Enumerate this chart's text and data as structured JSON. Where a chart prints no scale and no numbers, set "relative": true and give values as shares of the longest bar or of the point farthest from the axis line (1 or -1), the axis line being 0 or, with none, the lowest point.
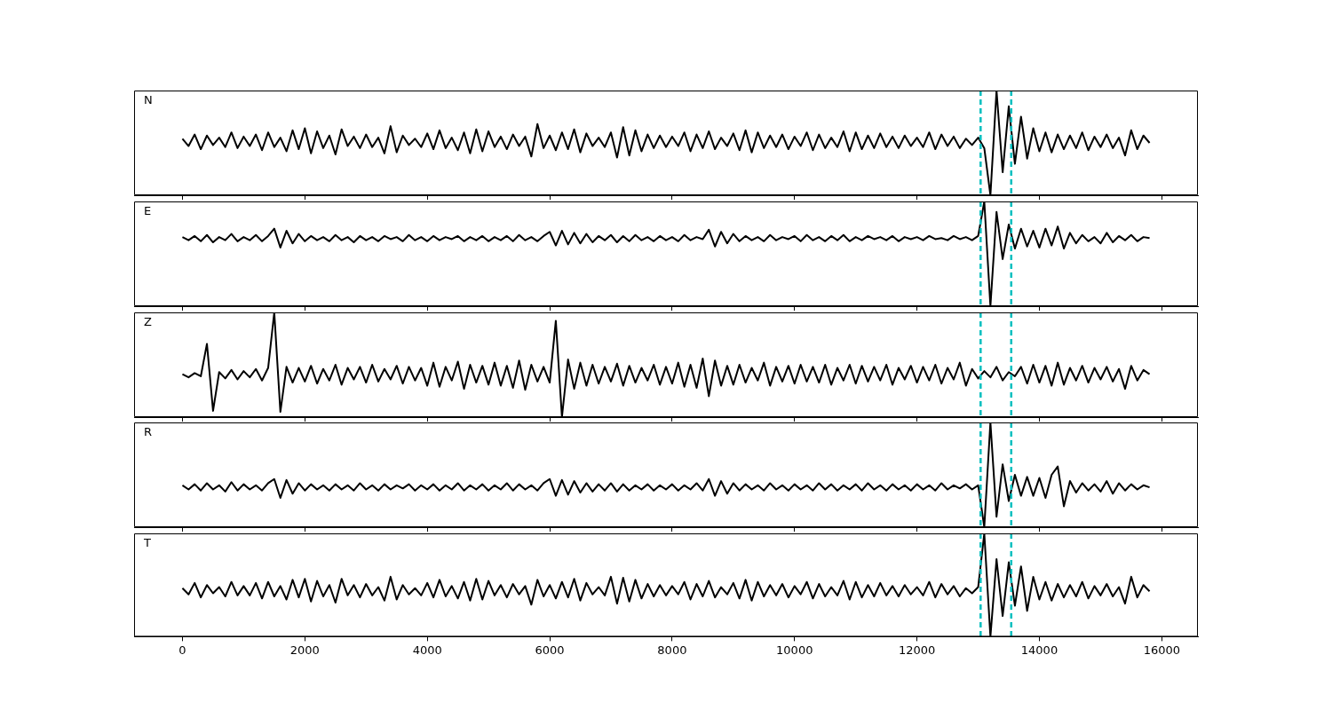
{
  "chart_data": [
    {
      "type": "line",
      "relative": true,
      "annotations": [
        "N"
      ],
      "xlim": [
        -790,
        16590
      ],
      "xticks": [
        0,
        2000,
        4000,
        6000,
        8000,
        10000,
        12000,
        14000,
        16000
      ],
      "tick_labels": false,
      "ref_lines": [
        {
          "axis": "x",
          "value": 13040,
          "color": "#00bfbf",
          "line_style": "dashed"
        },
        {
          "axis": "x",
          "value": 13540,
          "color": "#00bfbf",
          "line_style": "dashed"
        }
      ],
      "x": [
        0,
        100,
        200,
        300,
        400,
        500,
        600,
        700,
        800,
        900,
        1000,
        1100,
        1200,
        1300,
        1400,
        1500,
        1600,
        1700,
        1800,
        1900,
        2000,
        2100,
        2200,
        2300,
        2400,
        2500,
        2600,
        2700,
        2800,
        2900,
        3000,
        3100,
        3200,
        3300,
        3400,
        3500,
        3600,
        3700,
        3800,
        3900,
        4000,
        4100,
        4200,
        4300,
        4400,
        4500,
        4600,
        4700,
        4800,
        4900,
        5000,
        5100,
        5200,
        5300,
        5400,
        5500,
        5600,
        5700,
        5800,
        5900,
        6000,
        6100,
        6200,
        6300,
        6400,
        6500,
        6600,
        6700,
        6800,
        6900,
        7000,
        7100,
        7200,
        7300,
        7400,
        7500,
        7600,
        7700,
        7800,
        7900,
        8000,
        8100,
        8200,
        8300,
        8400,
        8500,
        8600,
        8700,
        8800,
        8900,
        9000,
        9100,
        9200,
        9300,
        9400,
        9500,
        9600,
        9700,
        9800,
        9900,
        10000,
        10100,
        10200,
        10300,
        10400,
        10500,
        10600,
        10700,
        10800,
        10900,
        11000,
        11100,
        11200,
        11300,
        11400,
        11500,
        11600,
        11700,
        11800,
        11900,
        12000,
        12100,
        12200,
        12300,
        12400,
        12500,
        12600,
        12700,
        12800,
        12900,
        13000,
        13100,
        13200,
        13300,
        13400,
        13500,
        13600,
        13700,
        13800,
        13900,
        14000,
        14100,
        14200,
        14300,
        14400,
        14500,
        14600,
        14700,
        14800,
        14900,
        15000,
        15100,
        15200,
        15300,
        15400,
        15500,
        15600,
        15700,
        15800
      ],
      "series": [
        {
          "color": "#000000",
          "line_style": "solid",
          "marker": "none",
          "values": [
            0.54,
            0.47,
            0.58,
            0.44,
            0.57,
            0.48,
            0.55,
            0.46,
            0.6,
            0.45,
            0.56,
            0.47,
            0.58,
            0.43,
            0.6,
            0.46,
            0.55,
            0.42,
            0.62,
            0.44,
            0.64,
            0.4,
            0.61,
            0.45,
            0.57,
            0.39,
            0.63,
            0.47,
            0.56,
            0.45,
            0.58,
            0.46,
            0.55,
            0.4,
            0.66,
            0.41,
            0.57,
            0.48,
            0.54,
            0.46,
            0.59,
            0.44,
            0.62,
            0.45,
            0.55,
            0.43,
            0.6,
            0.4,
            0.63,
            0.42,
            0.61,
            0.46,
            0.56,
            0.44,
            0.58,
            0.47,
            0.56,
            0.37,
            0.68,
            0.45,
            0.57,
            0.43,
            0.6,
            0.44,
            0.63,
            0.41,
            0.59,
            0.47,
            0.55,
            0.46,
            0.6,
            0.36,
            0.65,
            0.38,
            0.62,
            0.42,
            0.58,
            0.45,
            0.57,
            0.46,
            0.56,
            0.47,
            0.6,
            0.42,
            0.58,
            0.45,
            0.61,
            0.44,
            0.55,
            0.47,
            0.59,
            0.43,
            0.62,
            0.41,
            0.6,
            0.45,
            0.57,
            0.46,
            0.58,
            0.44,
            0.56,
            0.47,
            0.6,
            0.43,
            0.58,
            0.45,
            0.55,
            0.46,
            0.61,
            0.42,
            0.6,
            0.44,
            0.57,
            0.45,
            0.59,
            0.46,
            0.56,
            0.45,
            0.57,
            0.47,
            0.55,
            0.46,
            0.6,
            0.44,
            0.58,
            0.47,
            0.56,
            0.45,
            0.54,
            0.48,
            0.55,
            0.45,
            0.0,
            1.0,
            0.22,
            0.85,
            0.3,
            0.75,
            0.35,
            0.64,
            0.42,
            0.6,
            0.41,
            0.58,
            0.44,
            0.57,
            0.45,
            0.6,
            0.43,
            0.56,
            0.46,
            0.58,
            0.45,
            0.55,
            0.38,
            0.62,
            0.44,
            0.57,
            0.5
          ]
        }
      ]
    },
    {
      "type": "line",
      "relative": true,
      "annotations": [
        "E"
      ],
      "xlim": [
        -790,
        16590
      ],
      "xticks": [
        0,
        2000,
        4000,
        6000,
        8000,
        10000,
        12000,
        14000,
        16000
      ],
      "tick_labels": false,
      "ref_lines": [
        {
          "axis": "x",
          "value": 13040,
          "color": "#00bfbf",
          "line_style": "dashed"
        },
        {
          "axis": "x",
          "value": 13540,
          "color": "#00bfbf",
          "line_style": "dashed"
        }
      ],
      "x": [
        0,
        100,
        200,
        300,
        400,
        500,
        600,
        700,
        800,
        900,
        1000,
        1100,
        1200,
        1300,
        1400,
        1500,
        1600,
        1700,
        1800,
        1900,
        2000,
        2100,
        2200,
        2300,
        2400,
        2500,
        2600,
        2700,
        2800,
        2900,
        3000,
        3100,
        3200,
        3300,
        3400,
        3500,
        3600,
        3700,
        3800,
        3900,
        4000,
        4100,
        4200,
        4300,
        4400,
        4500,
        4600,
        4700,
        4800,
        4900,
        5000,
        5100,
        5200,
        5300,
        5400,
        5500,
        5600,
        5700,
        5800,
        5900,
        6000,
        6100,
        6200,
        6300,
        6400,
        6500,
        6600,
        6700,
        6800,
        6900,
        7000,
        7100,
        7200,
        7300,
        7400,
        7500,
        7600,
        7700,
        7800,
        7900,
        8000,
        8100,
        8200,
        8300,
        8400,
        8500,
        8600,
        8700,
        8800,
        8900,
        9000,
        9100,
        9200,
        9300,
        9400,
        9500,
        9600,
        9700,
        9800,
        9900,
        10000,
        10100,
        10200,
        10300,
        10400,
        10500,
        10600,
        10700,
        10800,
        10900,
        11000,
        11100,
        11200,
        11300,
        11400,
        11500,
        11600,
        11700,
        11800,
        11900,
        12000,
        12100,
        12200,
        12300,
        12400,
        12500,
        12600,
        12700,
        12800,
        12900,
        13000,
        13100,
        13200,
        13300,
        13400,
        13500,
        13600,
        13700,
        13800,
        13900,
        14000,
        14100,
        14200,
        14300,
        14400,
        14500,
        14600,
        14700,
        14800,
        14900,
        15000,
        15100,
        15200,
        15300,
        15400,
        15500,
        15600,
        15700,
        15800
      ],
      "series": [
        {
          "color": "#000000",
          "line_style": "solid",
          "marker": "none",
          "values": [
            0.66,
            0.63,
            0.67,
            0.62,
            0.68,
            0.61,
            0.66,
            0.63,
            0.69,
            0.62,
            0.66,
            0.63,
            0.68,
            0.62,
            0.67,
            0.74,
            0.56,
            0.72,
            0.6,
            0.69,
            0.62,
            0.67,
            0.63,
            0.66,
            0.62,
            0.68,
            0.63,
            0.66,
            0.61,
            0.67,
            0.63,
            0.66,
            0.62,
            0.67,
            0.64,
            0.66,
            0.62,
            0.68,
            0.63,
            0.66,
            0.62,
            0.67,
            0.63,
            0.66,
            0.64,
            0.67,
            0.62,
            0.66,
            0.63,
            0.67,
            0.62,
            0.66,
            0.63,
            0.67,
            0.62,
            0.68,
            0.63,
            0.66,
            0.62,
            0.67,
            0.71,
            0.58,
            0.72,
            0.59,
            0.7,
            0.6,
            0.69,
            0.61,
            0.67,
            0.63,
            0.68,
            0.61,
            0.67,
            0.62,
            0.68,
            0.63,
            0.66,
            0.62,
            0.67,
            0.63,
            0.66,
            0.62,
            0.68,
            0.63,
            0.66,
            0.64,
            0.73,
            0.57,
            0.71,
            0.6,
            0.69,
            0.62,
            0.67,
            0.63,
            0.66,
            0.62,
            0.68,
            0.63,
            0.66,
            0.64,
            0.67,
            0.62,
            0.68,
            0.63,
            0.66,
            0.62,
            0.67,
            0.63,
            0.68,
            0.62,
            0.66,
            0.63,
            0.67,
            0.64,
            0.66,
            0.63,
            0.67,
            0.62,
            0.66,
            0.64,
            0.66,
            0.63,
            0.67,
            0.64,
            0.65,
            0.63,
            0.67,
            0.64,
            0.66,
            0.63,
            0.67,
            1.0,
            0.0,
            0.9,
            0.45,
            0.78,
            0.55,
            0.74,
            0.57,
            0.72,
            0.56,
            0.74,
            0.58,
            0.76,
            0.55,
            0.7,
            0.6,
            0.68,
            0.62,
            0.66,
            0.6,
            0.7,
            0.61,
            0.67,
            0.63,
            0.68,
            0.62,
            0.66,
            0.65
          ]
        }
      ]
    },
    {
      "type": "line",
      "relative": true,
      "annotations": [
        "Z"
      ],
      "xlim": [
        -790,
        16590
      ],
      "xticks": [
        0,
        2000,
        4000,
        6000,
        8000,
        10000,
        12000,
        14000,
        16000
      ],
      "tick_labels": false,
      "ref_lines": [
        {
          "axis": "x",
          "value": 13040,
          "color": "#00bfbf",
          "line_style": "dashed"
        },
        {
          "axis": "x",
          "value": 13540,
          "color": "#00bfbf",
          "line_style": "dashed"
        }
      ],
      "x": [
        0,
        100,
        200,
        300,
        400,
        500,
        600,
        700,
        800,
        900,
        1000,
        1100,
        1200,
        1300,
        1400,
        1500,
        1600,
        1700,
        1800,
        1900,
        2000,
        2100,
        2200,
        2300,
        2400,
        2500,
        2600,
        2700,
        2800,
        2900,
        3000,
        3100,
        3200,
        3300,
        3400,
        3500,
        3600,
        3700,
        3800,
        3900,
        4000,
        4100,
        4200,
        4300,
        4400,
        4500,
        4600,
        4700,
        4800,
        4900,
        5000,
        5100,
        5200,
        5300,
        5400,
        5500,
        5600,
        5700,
        5800,
        5900,
        6000,
        6100,
        6200,
        6300,
        6400,
        6500,
        6600,
        6700,
        6800,
        6900,
        7000,
        7100,
        7200,
        7300,
        7400,
        7500,
        7600,
        7700,
        7800,
        7900,
        8000,
        8100,
        8200,
        8300,
        8400,
        8500,
        8600,
        8700,
        8800,
        8900,
        9000,
        9100,
        9200,
        9300,
        9400,
        9500,
        9600,
        9700,
        9800,
        9900,
        10000,
        10100,
        10200,
        10300,
        10400,
        10500,
        10600,
        10700,
        10800,
        10900,
        11000,
        11100,
        11200,
        11300,
        11400,
        11500,
        11600,
        11700,
        11800,
        11900,
        12000,
        12100,
        12200,
        12300,
        12400,
        12500,
        12600,
        12700,
        12800,
        12900,
        13000,
        13100,
        13200,
        13300,
        13400,
        13500,
        13600,
        13700,
        13800,
        13900,
        14000,
        14100,
        14200,
        14300,
        14400,
        14500,
        14600,
        14700,
        14800,
        14900,
        15000,
        15100,
        15200,
        15300,
        15400,
        15500,
        15600,
        15700,
        15800
      ],
      "series": [
        {
          "color": "#000000",
          "line_style": "solid",
          "marker": "none",
          "values": [
            0.41,
            0.38,
            0.42,
            0.39,
            0.7,
            0.06,
            0.43,
            0.37,
            0.45,
            0.36,
            0.44,
            0.38,
            0.46,
            0.35,
            0.47,
            1.0,
            0.05,
            0.48,
            0.33,
            0.47,
            0.34,
            0.49,
            0.32,
            0.46,
            0.35,
            0.5,
            0.31,
            0.47,
            0.36,
            0.48,
            0.33,
            0.5,
            0.34,
            0.46,
            0.36,
            0.49,
            0.32,
            0.48,
            0.35,
            0.47,
            0.3,
            0.52,
            0.29,
            0.48,
            0.35,
            0.53,
            0.27,
            0.5,
            0.33,
            0.49,
            0.31,
            0.52,
            0.3,
            0.49,
            0.28,
            0.54,
            0.26,
            0.5,
            0.34,
            0.48,
            0.33,
            0.92,
            0.0,
            0.55,
            0.27,
            0.52,
            0.3,
            0.5,
            0.32,
            0.48,
            0.34,
            0.51,
            0.3,
            0.49,
            0.33,
            0.47,
            0.35,
            0.5,
            0.31,
            0.48,
            0.32,
            0.52,
            0.29,
            0.5,
            0.28,
            0.56,
            0.2,
            0.54,
            0.3,
            0.49,
            0.31,
            0.5,
            0.33,
            0.47,
            0.35,
            0.52,
            0.3,
            0.48,
            0.34,
            0.49,
            0.32,
            0.5,
            0.34,
            0.48,
            0.33,
            0.5,
            0.31,
            0.47,
            0.35,
            0.5,
            0.32,
            0.49,
            0.34,
            0.48,
            0.35,
            0.5,
            0.31,
            0.47,
            0.36,
            0.49,
            0.33,
            0.48,
            0.35,
            0.5,
            0.32,
            0.47,
            0.36,
            0.52,
            0.3,
            0.46,
            0.37,
            0.44,
            0.38,
            0.48,
            0.35,
            0.43,
            0.39,
            0.48,
            0.32,
            0.5,
            0.33,
            0.49,
            0.3,
            0.52,
            0.31,
            0.47,
            0.35,
            0.49,
            0.33,
            0.47,
            0.36,
            0.48,
            0.34,
            0.46,
            0.27,
            0.49,
            0.35,
            0.45,
            0.41
          ]
        }
      ]
    },
    {
      "type": "line",
      "relative": true,
      "annotations": [
        "R"
      ],
      "xlim": [
        -790,
        16590
      ],
      "xticks": [
        0,
        2000,
        4000,
        6000,
        8000,
        10000,
        12000,
        14000,
        16000
      ],
      "tick_labels": false,
      "ref_lines": [
        {
          "axis": "x",
          "value": 13040,
          "color": "#00bfbf",
          "line_style": "dashed"
        },
        {
          "axis": "x",
          "value": 13540,
          "color": "#00bfbf",
          "line_style": "dashed"
        }
      ],
      "x": [
        0,
        100,
        200,
        300,
        400,
        500,
        600,
        700,
        800,
        900,
        1000,
        1100,
        1200,
        1300,
        1400,
        1500,
        1600,
        1700,
        1800,
        1900,
        2000,
        2100,
        2200,
        2300,
        2400,
        2500,
        2600,
        2700,
        2800,
        2900,
        3000,
        3100,
        3200,
        3300,
        3400,
        3500,
        3600,
        3700,
        3800,
        3900,
        4000,
        4100,
        4200,
        4300,
        4400,
        4500,
        4600,
        4700,
        4800,
        4900,
        5000,
        5100,
        5200,
        5300,
        5400,
        5500,
        5600,
        5700,
        5800,
        5900,
        6000,
        6100,
        6200,
        6300,
        6400,
        6500,
        6600,
        6700,
        6800,
        6900,
        7000,
        7100,
        7200,
        7300,
        7400,
        7500,
        7600,
        7700,
        7800,
        7900,
        8000,
        8100,
        8200,
        8300,
        8400,
        8500,
        8600,
        8700,
        8800,
        8900,
        9000,
        9100,
        9200,
        9300,
        9400,
        9500,
        9600,
        9700,
        9800,
        9900,
        10000,
        10100,
        10200,
        10300,
        10400,
        10500,
        10600,
        10700,
        10800,
        10900,
        11000,
        11100,
        11200,
        11300,
        11400,
        11500,
        11600,
        11700,
        11800,
        11900,
        12000,
        12100,
        12200,
        12300,
        12400,
        12500,
        12600,
        12700,
        12800,
        12900,
        13000,
        13100,
        13200,
        13300,
        13400,
        13500,
        13600,
        13700,
        13800,
        13900,
        14000,
        14100,
        14200,
        14300,
        14400,
        14500,
        14600,
        14700,
        14800,
        14900,
        15000,
        15100,
        15200,
        15300,
        15400,
        15500,
        15600,
        15700,
        15800
      ],
      "series": [
        {
          "color": "#000000",
          "line_style": "solid",
          "marker": "none",
          "values": [
            0.4,
            0.36,
            0.41,
            0.35,
            0.42,
            0.36,
            0.4,
            0.34,
            0.43,
            0.35,
            0.41,
            0.36,
            0.4,
            0.35,
            0.42,
            0.46,
            0.28,
            0.45,
            0.32,
            0.42,
            0.35,
            0.41,
            0.36,
            0.4,
            0.35,
            0.41,
            0.36,
            0.4,
            0.35,
            0.42,
            0.36,
            0.4,
            0.35,
            0.41,
            0.36,
            0.4,
            0.37,
            0.41,
            0.35,
            0.4,
            0.36,
            0.41,
            0.35,
            0.4,
            0.36,
            0.42,
            0.35,
            0.4,
            0.36,
            0.41,
            0.35,
            0.4,
            0.36,
            0.42,
            0.35,
            0.41,
            0.36,
            0.4,
            0.35,
            0.42,
            0.46,
            0.3,
            0.45,
            0.31,
            0.44,
            0.33,
            0.42,
            0.34,
            0.41,
            0.35,
            0.42,
            0.34,
            0.41,
            0.35,
            0.4,
            0.36,
            0.41,
            0.35,
            0.4,
            0.36,
            0.41,
            0.35,
            0.4,
            0.36,
            0.42,
            0.35,
            0.46,
            0.3,
            0.44,
            0.32,
            0.42,
            0.35,
            0.41,
            0.36,
            0.4,
            0.35,
            0.42,
            0.36,
            0.4,
            0.35,
            0.41,
            0.36,
            0.4,
            0.35,
            0.42,
            0.36,
            0.41,
            0.35,
            0.4,
            0.36,
            0.41,
            0.35,
            0.42,
            0.36,
            0.4,
            0.35,
            0.41,
            0.36,
            0.4,
            0.35,
            0.41,
            0.36,
            0.4,
            0.35,
            0.42,
            0.36,
            0.4,
            0.37,
            0.41,
            0.36,
            0.4,
            0.0,
            1.0,
            0.1,
            0.6,
            0.25,
            0.5,
            0.3,
            0.48,
            0.3,
            0.47,
            0.28,
            0.5,
            0.58,
            0.2,
            0.44,
            0.33,
            0.42,
            0.35,
            0.41,
            0.34,
            0.44,
            0.32,
            0.42,
            0.35,
            0.41,
            0.36,
            0.4,
            0.38
          ]
        }
      ]
    },
    {
      "type": "line",
      "relative": true,
      "annotations": [
        "T"
      ],
      "xlim": [
        -790,
        16590
      ],
      "xticks": [
        0,
        2000,
        4000,
        6000,
        8000,
        10000,
        12000,
        14000,
        16000
      ],
      "tick_labels": "x",
      "ref_lines": [
        {
          "axis": "x",
          "value": 13040,
          "color": "#00bfbf",
          "line_style": "dashed"
        },
        {
          "axis": "x",
          "value": 13540,
          "color": "#00bfbf",
          "line_style": "dashed"
        }
      ],
      "x": [
        0,
        100,
        200,
        300,
        400,
        500,
        600,
        700,
        800,
        900,
        1000,
        1100,
        1200,
        1300,
        1400,
        1500,
        1600,
        1700,
        1800,
        1900,
        2000,
        2100,
        2200,
        2300,
        2400,
        2500,
        2600,
        2700,
        2800,
        2900,
        3000,
        3100,
        3200,
        3300,
        3400,
        3500,
        3600,
        3700,
        3800,
        3900,
        4000,
        4100,
        4200,
        4300,
        4400,
        4500,
        4600,
        4700,
        4800,
        4900,
        5000,
        5100,
        5200,
        5300,
        5400,
        5500,
        5600,
        5700,
        5800,
        5900,
        6000,
        6100,
        6200,
        6300,
        6400,
        6500,
        6600,
        6700,
        6800,
        6900,
        7000,
        7100,
        7200,
        7300,
        7400,
        7500,
        7600,
        7700,
        7800,
        7900,
        8000,
        8100,
        8200,
        8300,
        8400,
        8500,
        8600,
        8700,
        8800,
        8900,
        9000,
        9100,
        9200,
        9300,
        9400,
        9500,
        9600,
        9700,
        9800,
        9900,
        10000,
        10100,
        10200,
        10300,
        10400,
        10500,
        10600,
        10700,
        10800,
        10900,
        11000,
        11100,
        11200,
        11300,
        11400,
        11500,
        11600,
        11700,
        11800,
        11900,
        12000,
        12100,
        12200,
        12300,
        12400,
        12500,
        12600,
        12700,
        12800,
        12900,
        13000,
        13100,
        13200,
        13300,
        13400,
        13500,
        13600,
        13700,
        13800,
        13900,
        14000,
        14100,
        14200,
        14300,
        14400,
        14500,
        14600,
        14700,
        14800,
        14900,
        15000,
        15100,
        15200,
        15300,
        15400,
        15500,
        15600,
        15700,
        15800
      ],
      "series": [
        {
          "color": "#000000",
          "line_style": "solid",
          "marker": "none",
          "values": [
            0.47,
            0.41,
            0.52,
            0.38,
            0.5,
            0.42,
            0.48,
            0.39,
            0.53,
            0.4,
            0.49,
            0.4,
            0.52,
            0.37,
            0.53,
            0.39,
            0.49,
            0.36,
            0.55,
            0.38,
            0.56,
            0.34,
            0.54,
            0.39,
            0.5,
            0.33,
            0.56,
            0.4,
            0.5,
            0.38,
            0.51,
            0.4,
            0.48,
            0.35,
            0.58,
            0.36,
            0.5,
            0.41,
            0.47,
            0.4,
            0.52,
            0.38,
            0.55,
            0.39,
            0.49,
            0.37,
            0.53,
            0.35,
            0.56,
            0.36,
            0.54,
            0.4,
            0.5,
            0.38,
            0.51,
            0.41,
            0.49,
            0.31,
            0.55,
            0.39,
            0.5,
            0.37,
            0.53,
            0.38,
            0.56,
            0.35,
            0.52,
            0.41,
            0.48,
            0.4,
            0.58,
            0.32,
            0.57,
            0.34,
            0.55,
            0.37,
            0.51,
            0.39,
            0.5,
            0.4,
            0.49,
            0.41,
            0.53,
            0.36,
            0.51,
            0.39,
            0.54,
            0.38,
            0.48,
            0.41,
            0.52,
            0.37,
            0.55,
            0.35,
            0.53,
            0.39,
            0.5,
            0.4,
            0.51,
            0.38,
            0.49,
            0.41,
            0.53,
            0.37,
            0.51,
            0.39,
            0.48,
            0.4,
            0.54,
            0.36,
            0.53,
            0.38,
            0.5,
            0.39,
            0.52,
            0.4,
            0.49,
            0.39,
            0.5,
            0.41,
            0.48,
            0.4,
            0.53,
            0.38,
            0.51,
            0.41,
            0.49,
            0.39,
            0.47,
            0.42,
            0.48,
            1.0,
            0.0,
            0.75,
            0.2,
            0.72,
            0.3,
            0.68,
            0.25,
            0.58,
            0.36,
            0.53,
            0.35,
            0.51,
            0.38,
            0.5,
            0.39,
            0.53,
            0.37,
            0.49,
            0.4,
            0.51,
            0.39,
            0.48,
            0.32,
            0.58,
            0.38,
            0.5,
            0.44
          ]
        }
      ]
    }
  ]
}
